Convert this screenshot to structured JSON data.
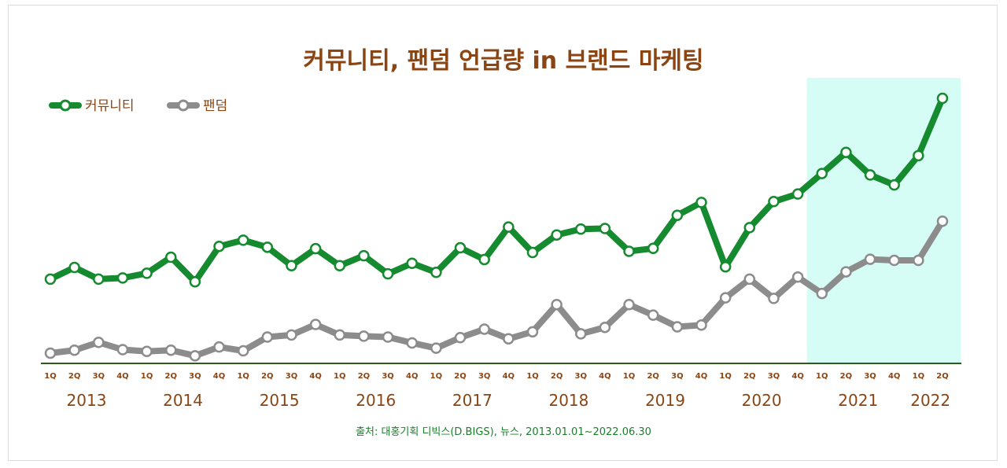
{
  "chart_data": {
    "type": "line",
    "title": "커뮤니티, 팬덤 언급량 in 브랜드 마케팅",
    "source": "출처: 대홍기획 디빅스(D.BIGS), 뉴스, 2013.01.01~2022.06.30",
    "xlabel": "",
    "ylabel": "",
    "grid": false,
    "legend_position": "top-left",
    "highlight": {
      "from": "2021 1Q",
      "to": "2022 2Q",
      "color": "#d6fcf6"
    },
    "quarters": [
      "1Q",
      "2Q",
      "3Q",
      "4Q",
      "1Q",
      "2Q",
      "3Q",
      "4Q",
      "1Q",
      "2Q",
      "3Q",
      "4Q",
      "1Q",
      "2Q",
      "3Q",
      "4Q",
      "1Q",
      "2Q",
      "3Q",
      "4Q",
      "1Q",
      "2Q",
      "3Q",
      "4Q",
      "1Q",
      "2Q",
      "3Q",
      "4Q",
      "1Q",
      "2Q",
      "3Q",
      "4Q",
      "1Q",
      "2Q",
      "3Q",
      "4Q",
      "1Q",
      "2Q"
    ],
    "years": [
      "2013",
      "2014",
      "2015",
      "2016",
      "2017",
      "2018",
      "2019",
      "2020",
      "2021",
      "2022"
    ],
    "ylim": [
      0,
      100
    ],
    "series": [
      {
        "name": "커뮤니티",
        "color": "#158a2e",
        "values": [
          28.8,
          32.8,
          28.8,
          29.2,
          30.8,
          36.3,
          27.9,
          40.0,
          42.1,
          39.7,
          33.4,
          39.2,
          33.4,
          36.8,
          30.6,
          34.2,
          31.1,
          39.5,
          35.5,
          46.6,
          37.9,
          43.9,
          45.9,
          46.1,
          38.3,
          39.3,
          50.6,
          55.0,
          33.0,
          46.4,
          55.3,
          57.9,
          64.9,
          72.1,
          64.4,
          61.0,
          71.0,
          90.6
        ]
      },
      {
        "name": "팬덤",
        "color": "#8c8c8c",
        "values": [
          3.5,
          4.5,
          7.2,
          4.7,
          4.1,
          4.5,
          2.6,
          5.6,
          4.3,
          9.0,
          9.7,
          13.3,
          9.7,
          9.3,
          9.0,
          7.0,
          5.2,
          8.8,
          11.7,
          8.4,
          10.8,
          20.1,
          10.1,
          12.3,
          20.1,
          16.5,
          12.5,
          13.1,
          22.4,
          28.8,
          22.2,
          29.5,
          23.9,
          31.3,
          35.6,
          35.2,
          35.2,
          48.6
        ]
      }
    ]
  }
}
